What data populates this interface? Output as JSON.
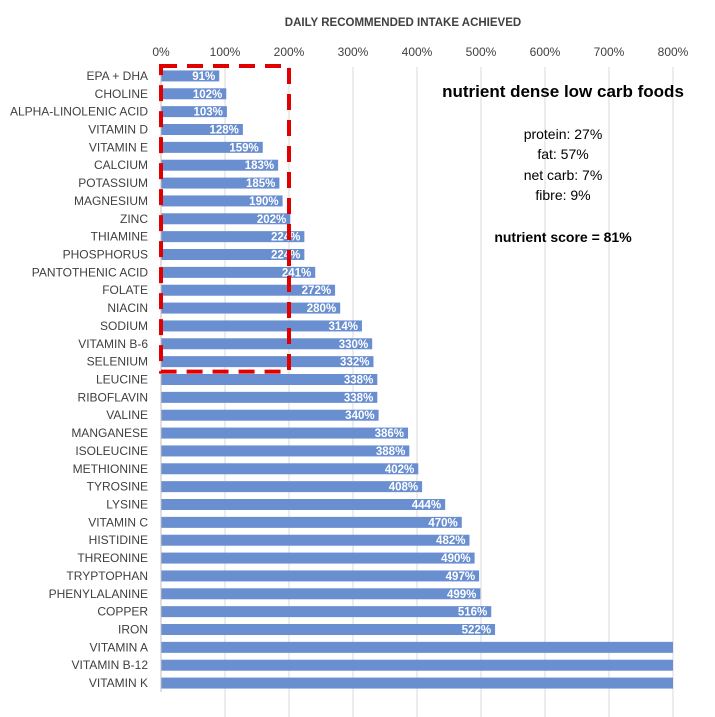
{
  "chart_data": {
    "type": "bar",
    "orientation": "horizontal",
    "title": "DAILY RECOMMENDED INTAKE ACHIEVED",
    "xlim": [
      0,
      800
    ],
    "x_ticks": [
      "0%",
      "100%",
      "200%",
      "300%",
      "400%",
      "500%",
      "600%",
      "700%",
      "800%"
    ],
    "grid": true,
    "categories": [
      "EPA + DHA",
      "CHOLINE",
      "ALPHA-LINOLENIC ACID",
      "VITAMIN D",
      "VITAMIN E",
      "CALCIUM",
      "POTASSIUM",
      "MAGNESIUM",
      "ZINC",
      "THIAMINE",
      "PHOSPHORUS",
      "PANTOTHENIC ACID",
      "FOLATE",
      "NIACIN",
      "SODIUM",
      "VITAMIN B-6",
      "SELENIUM",
      "LEUCINE",
      "RIBOFLAVIN",
      "VALINE",
      "MANGANESE",
      "ISOLEUCINE",
      "METHIONINE",
      "TYROSINE",
      "LYSINE",
      "VITAMIN C",
      "HISTIDINE",
      "THREONINE",
      "TRYPTOPHAN",
      "PHENYLALANINE",
      "COPPER",
      "IRON",
      "VITAMIN A",
      "VITAMIN B-12",
      "VITAMIN K"
    ],
    "values": [
      91,
      102,
      103,
      128,
      159,
      183,
      185,
      190,
      202,
      224,
      224,
      241,
      272,
      280,
      314,
      330,
      332,
      338,
      338,
      340,
      386,
      388,
      402,
      408,
      444,
      470,
      482,
      490,
      497,
      499,
      516,
      522,
      800,
      800,
      800
    ],
    "data_labels": [
      "91%",
      "102%",
      "103%",
      "128%",
      "159%",
      "183%",
      "185%",
      "190%",
      "202%",
      "224%",
      "224%",
      "241%",
      "272%",
      "280%",
      "314%",
      "330%",
      "332%",
      "338%",
      "338%",
      "340%",
      "386%",
      "388%",
      "402%",
      "408%",
      "444%",
      "470%",
      "482%",
      "490%",
      "497%",
      "499%",
      "516%",
      "522%",
      "",
      "",
      ""
    ],
    "highlight": {
      "from_category": "EPA + DHA",
      "to_category": "SELENIUM",
      "x_range": [
        0,
        200
      ],
      "color": "#e00000"
    },
    "bar_color": "#6a8fd0",
    "annotations": {
      "heading": "nutrient dense low carb foods",
      "lines": [
        "protein: 27%",
        "fat: 57%",
        "net carb: 7%",
        "fibre: 9%"
      ],
      "score": "nutrient score = 81%"
    }
  }
}
